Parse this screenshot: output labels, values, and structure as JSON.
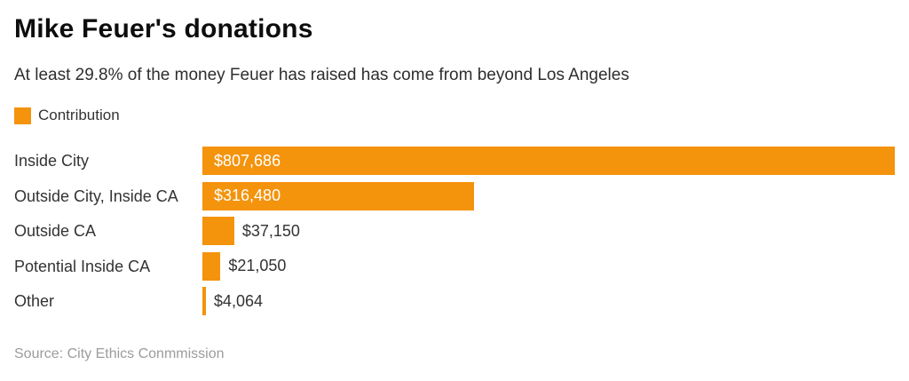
{
  "header": {
    "title": "Mike Feuer's donations",
    "subtitle": "At least 29.8% of the money Feuer has raised has come from beyond Los Angeles"
  },
  "legend": {
    "label": "Contribution",
    "swatch_color": "#F4930C"
  },
  "chart_data": {
    "type": "bar",
    "orientation": "horizontal",
    "title": "Mike Feuer's donations",
    "subtitle": "At least 29.8% of the money Feuer has raised has come from beyond Los Angeles",
    "series_name": "Contribution",
    "categories": [
      "Inside City",
      "Outside City, Inside CA",
      "Outside CA",
      "Potential Inside CA",
      "Other"
    ],
    "values": [
      807686,
      316480,
      37150,
      21050,
      4064
    ],
    "value_labels": [
      "$807,686",
      "$316,480",
      "$37,150",
      "$21,050",
      "$4,064"
    ],
    "bar_color": "#F4930C",
    "xlim": [
      0,
      807686
    ],
    "grid": false,
    "legend_position": "top-left"
  },
  "source": {
    "text": "Source: City Ethics Conmmission"
  }
}
